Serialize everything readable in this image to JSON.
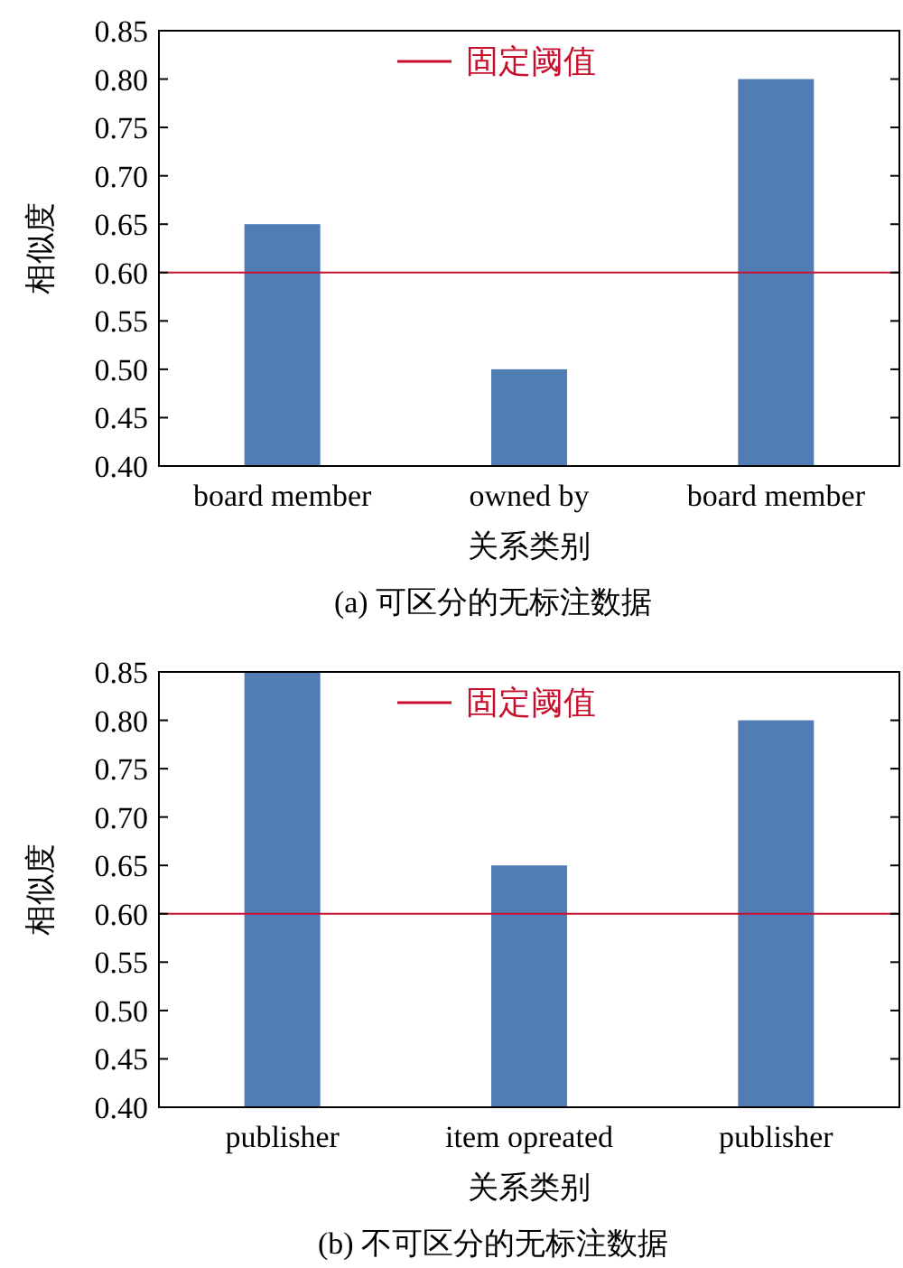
{
  "chart_data": [
    {
      "type": "bar",
      "categories": [
        "board member",
        "owned by",
        "board member"
      ],
      "values": [
        0.65,
        0.5,
        0.8
      ],
      "color": "#4f7db4",
      "ylim": [
        0.4,
        0.85
      ],
      "yticks": [
        {
          "value": 0.4,
          "label": "0.40"
        },
        {
          "value": 0.45,
          "label": "0.45"
        },
        {
          "value": 0.5,
          "label": "0.50"
        },
        {
          "value": 0.55,
          "label": "0.55"
        },
        {
          "value": 0.6,
          "label": "0.60"
        },
        {
          "value": 0.65,
          "label": "0.65"
        },
        {
          "value": 0.7,
          "label": "0.70"
        },
        {
          "value": 0.75,
          "label": "0.75"
        },
        {
          "value": 0.8,
          "label": "0.80"
        },
        {
          "value": 0.85,
          "label": "0.85"
        }
      ],
      "ylabel": "相似度",
      "xlabel": "关系类别",
      "legend": "top",
      "ref_lines": [
        {
          "axis": "y",
          "value": 0.6,
          "label": "固定阈值",
          "color": "#c8102e"
        }
      ],
      "annotations": [
        "(a)  可区分的无标注数据"
      ]
    },
    {
      "type": "bar",
      "categories": [
        "publisher",
        "item opreated",
        "publisher"
      ],
      "values": [
        0.85,
        0.65,
        0.8
      ],
      "color": "#4f7db4",
      "ylim": [
        0.4,
        0.85
      ],
      "yticks": [
        {
          "value": 0.4,
          "label": "0.40"
        },
        {
          "value": 0.45,
          "label": "0.45"
        },
        {
          "value": 0.5,
          "label": "0.50"
        },
        {
          "value": 0.55,
          "label": "0.55"
        },
        {
          "value": 0.6,
          "label": "0.60"
        },
        {
          "value": 0.65,
          "label": "0.65"
        },
        {
          "value": 0.7,
          "label": "0.70"
        },
        {
          "value": 0.75,
          "label": "0.75"
        },
        {
          "value": 0.8,
          "label": "0.80"
        },
        {
          "value": 0.85,
          "label": "0.85"
        }
      ],
      "ylabel": "相似度",
      "xlabel": "关系类别",
      "legend": "top",
      "ref_lines": [
        {
          "axis": "y",
          "value": 0.6,
          "label": "固定阈值",
          "color": "#c8102e"
        }
      ],
      "annotations": [
        "(b)  不可区分的无标注数据"
      ]
    }
  ]
}
